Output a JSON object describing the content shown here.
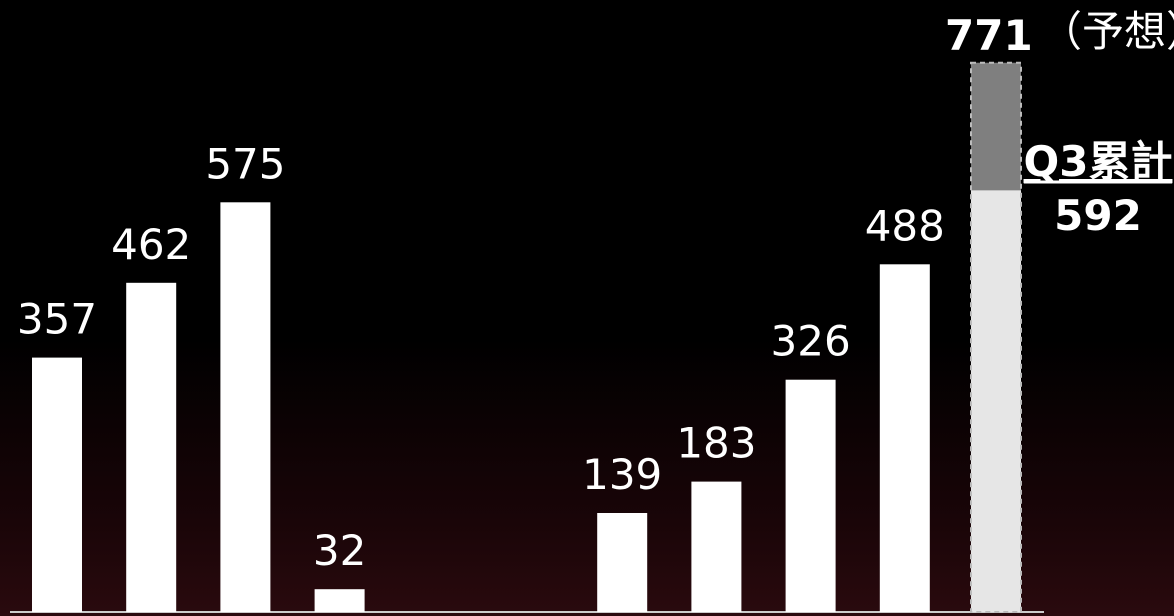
{
  "chart_data": {
    "type": "bar",
    "values": [
      357,
      462,
      575,
      32,
      null,
      null,
      139,
      183,
      326,
      488
    ],
    "forecast": {
      "total": 771,
      "total_label": "771",
      "forecast_note": "（予想）",
      "q3_cumulative": 592,
      "q3_label": "Q3累計",
      "q3_value_label": "592"
    },
    "colors": {
      "bar": "#ffffff",
      "forecast_upper": "#7f7f7f",
      "forecast_lower": "#e6e6e6",
      "baseline": "#cccccc"
    }
  }
}
